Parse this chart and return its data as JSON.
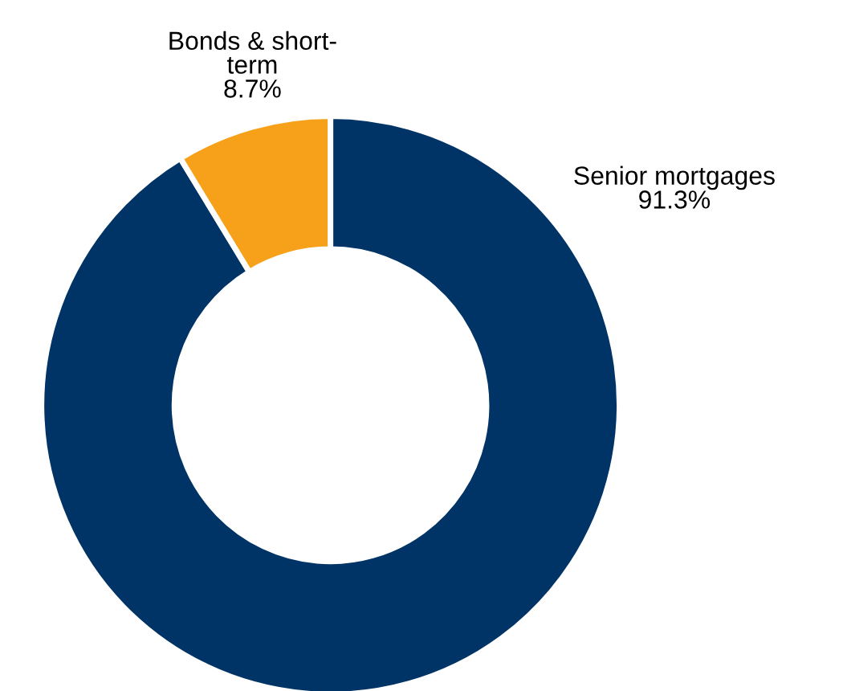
{
  "chart_data": {
    "type": "donut",
    "categories": [
      "Senior mortgages",
      "Bonds & short-term"
    ],
    "values": [
      91.3,
      8.7
    ],
    "colors": [
      "#003366",
      "#f7a11a"
    ],
    "value_labels": [
      "91.3%",
      "8.7%"
    ],
    "legend": false
  }
}
